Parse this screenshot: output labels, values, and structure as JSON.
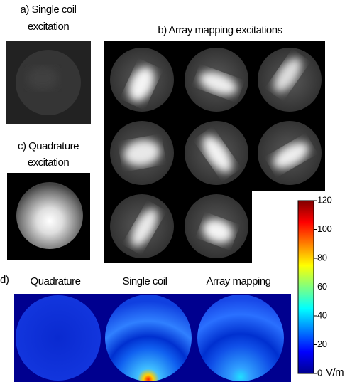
{
  "panel_a": {
    "title_line1": "a) Single coil",
    "title_line2": "excitation"
  },
  "panel_b": {
    "title": "b) Array mapping excitations"
  },
  "panel_c": {
    "title_line1": "c) Quadrature",
    "title_line2": "excitation"
  },
  "panel_d": {
    "label": "d)",
    "maps": [
      "Quadrature",
      "Single coil",
      "Array mapping"
    ]
  },
  "colorbar": {
    "range": [
      0,
      120
    ],
    "ticks": [
      0,
      20,
      40,
      60,
      80,
      100,
      120
    ],
    "unit": "V/m"
  }
}
